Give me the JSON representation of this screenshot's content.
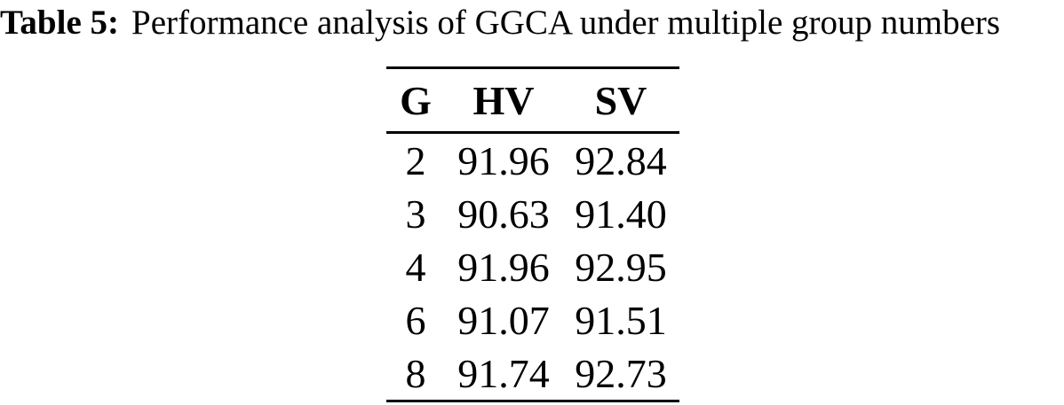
{
  "caption": {
    "label": "Table 5:",
    "text": "Performance analysis of GGCA under multiple group numbers"
  },
  "chart_data": {
    "type": "table",
    "columns": [
      "G",
      "HV",
      "SV"
    ],
    "rows": [
      [
        "2",
        "91.96",
        "92.84"
      ],
      [
        "3",
        "90.63",
        "91.40"
      ],
      [
        "4",
        "91.96",
        "92.95"
      ],
      [
        "6",
        "91.07",
        "91.51"
      ],
      [
        "8",
        "91.74",
        "92.73"
      ]
    ]
  },
  "colors": {
    "background": "#ffffff",
    "text": "#000000",
    "rule": "#000000"
  }
}
